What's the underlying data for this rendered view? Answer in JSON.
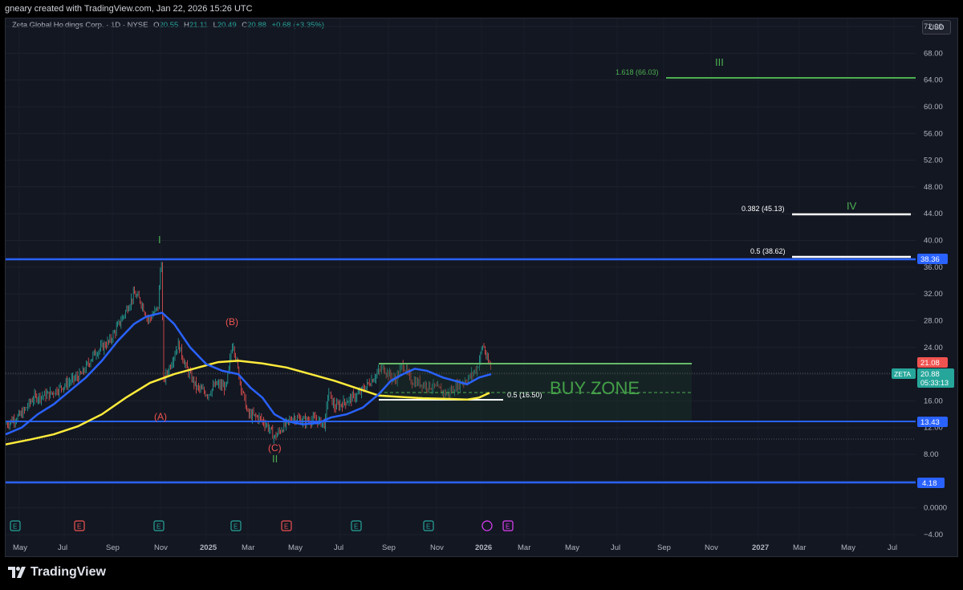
{
  "header": {
    "credit": "gneary created with TradingView.com, Jan 22, 2026 15:26 UTC"
  },
  "legend": {
    "symbol": "Zeta Global Holdings Corp. · 1D · NYSE",
    "open_label": "O",
    "open": "20.55",
    "high_label": "H",
    "high": "21.11",
    "low_label": "L",
    "low": "20.49",
    "close_label": "C",
    "close": "20.88",
    "change": "+0.68 (+3.35%)"
  },
  "currency": "USD",
  "price_axis": {
    "ticks": [
      "72.00",
      "68.00",
      "64.00",
      "60.00",
      "56.00",
      "52.00",
      "48.00",
      "44.00",
      "40.00",
      "36.00",
      "32.00",
      "28.00",
      "24.00",
      "20.00",
      "16.00",
      "12.00",
      "8.00",
      "4.00",
      "0.0000",
      "−4.00"
    ]
  },
  "time_axis": {
    "ticks": [
      "May",
      "Jul",
      "Sep",
      "Nov",
      "2025",
      "Mar",
      "May",
      "Jul",
      "Sep",
      "Nov",
      "2026",
      "Mar",
      "May",
      "Jul",
      "Sep",
      "Nov",
      "2027",
      "Mar",
      "May",
      "Jul"
    ]
  },
  "price_labels": {
    "resistance": "38.36",
    "support": "13.43",
    "low_support": "4.18",
    "last_red": "21.08",
    "ticker": "ZETA",
    "last_price": "20.88",
    "countdown": "05:33:13"
  },
  "annotations": {
    "wave_1": "I",
    "wave_2": "II",
    "wave_3": "III",
    "wave_4": "IV",
    "wave_a": "(A)",
    "wave_b": "(B)",
    "wave_c": "(C)",
    "buy_zone": "BUY ZONE",
    "fib_1618": "1.618 (66.03)",
    "fib_0382": "0.382 (45.13)",
    "fib_05_top": "0.5 (38.62)",
    "fib_05_low": "0.5 (16.50)"
  },
  "events": [
    {
      "type": "earnings",
      "label": "E",
      "color": "#26a69a"
    },
    {
      "type": "earnings",
      "label": "E",
      "color": "#ef5350"
    },
    {
      "type": "earnings",
      "label": "E",
      "color": "#26a69a"
    },
    {
      "type": "earnings",
      "label": "E",
      "color": "#26a69a"
    },
    {
      "type": "earnings",
      "label": "E",
      "color": "#ef5350"
    },
    {
      "type": "earnings",
      "label": "E",
      "color": "#26a69a"
    },
    {
      "type": "earnings",
      "label": "E",
      "color": "#26a69a"
    },
    {
      "type": "upcoming",
      "label": "E",
      "color": "#e040fb"
    }
  ],
  "colors": {
    "background": "#131722",
    "blue_line": "#2962ff",
    "yellow_line": "#ffeb3b",
    "green_line": "#4caf50",
    "up": "#26a69a",
    "down": "#ef5350"
  },
  "brand": "TradingView"
}
